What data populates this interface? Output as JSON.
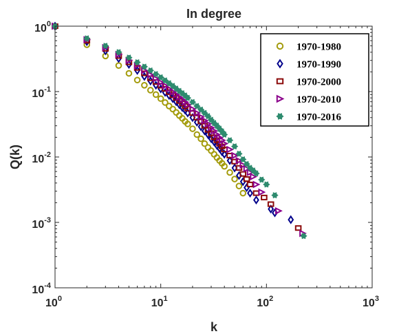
{
  "chart_data": {
    "type": "scatter",
    "title": "In degree",
    "xlabel": "k",
    "ylabel": "Q(k)",
    "xscale": "log",
    "yscale": "log",
    "xlim": [
      1,
      1000
    ],
    "ylim": [
      0.0001,
      1
    ],
    "grid": false,
    "legend_position": "top-right",
    "x_ticks": [
      {
        "base": "10",
        "exp": "0"
      },
      {
        "base": "10",
        "exp": "1"
      },
      {
        "base": "10",
        "exp": "2"
      },
      {
        "base": "10",
        "exp": "3"
      }
    ],
    "y_ticks": [
      {
        "base": "10",
        "exp": "0"
      },
      {
        "base": "10",
        "exp": "-1"
      },
      {
        "base": "10",
        "exp": "-2"
      },
      {
        "base": "10",
        "exp": "-3"
      },
      {
        "base": "10",
        "exp": "-4"
      }
    ],
    "series": [
      {
        "name": "1970-1980",
        "marker": "circle",
        "color": "#a39b0b",
        "x": [
          1,
          2,
          3,
          4,
          5,
          6,
          7,
          8,
          9,
          10,
          11,
          12,
          13,
          14,
          15,
          16,
          17,
          18,
          20,
          22,
          24,
          26,
          28,
          30,
          32,
          34,
          36,
          38,
          40,
          45,
          50,
          55,
          60
        ],
        "y": [
          1,
          0.52,
          0.35,
          0.25,
          0.19,
          0.15,
          0.125,
          0.105,
          0.09,
          0.078,
          0.068,
          0.06,
          0.054,
          0.048,
          0.043,
          0.039,
          0.035,
          0.032,
          0.027,
          0.022,
          0.019,
          0.016,
          0.014,
          0.0125,
          0.011,
          0.0098,
          0.0088,
          0.008,
          0.0072,
          0.0058,
          0.0046,
          0.0036,
          0.0028
        ]
      },
      {
        "name": "1970-1990",
        "marker": "diamond",
        "color": "#00008b",
        "x": [
          1,
          2,
          3,
          4,
          5,
          6,
          7,
          8,
          9,
          10,
          11,
          12,
          13,
          14,
          15,
          16,
          17,
          18,
          20,
          22,
          24,
          26,
          28,
          30,
          32,
          34,
          36,
          38,
          40,
          45,
          50,
          55,
          60,
          65,
          70,
          80,
          110,
          120,
          170
        ],
        "y": [
          1,
          0.58,
          0.42,
          0.32,
          0.26,
          0.21,
          0.17,
          0.145,
          0.125,
          0.11,
          0.097,
          0.087,
          0.078,
          0.07,
          0.063,
          0.057,
          0.052,
          0.047,
          0.04,
          0.034,
          0.029,
          0.025,
          0.022,
          0.019,
          0.017,
          0.015,
          0.0135,
          0.012,
          0.011,
          0.0088,
          0.0068,
          0.0052,
          0.0042,
          0.0034,
          0.0028,
          0.0022,
          0.0016,
          0.0014,
          0.0011
        ]
      },
      {
        "name": "1970-2000",
        "marker": "square",
        "color": "#8b0a0a",
        "x": [
          1,
          2,
          3,
          4,
          5,
          6,
          7,
          8,
          9,
          10,
          11,
          12,
          13,
          14,
          15,
          16,
          17,
          18,
          20,
          22,
          24,
          26,
          28,
          30,
          32,
          34,
          36,
          38,
          40,
          45,
          50,
          55,
          60,
          65,
          70,
          80,
          95,
          110,
          200
        ],
        "y": [
          1,
          0.6,
          0.45,
          0.35,
          0.28,
          0.23,
          0.19,
          0.16,
          0.14,
          0.123,
          0.11,
          0.098,
          0.088,
          0.08,
          0.072,
          0.066,
          0.06,
          0.055,
          0.047,
          0.04,
          0.035,
          0.03,
          0.026,
          0.023,
          0.02,
          0.018,
          0.016,
          0.0145,
          0.013,
          0.0105,
          0.0085,
          0.0068,
          0.0055,
          0.0046,
          0.0038,
          0.0028,
          0.0024,
          0.0019,
          0.00082
        ]
      },
      {
        "name": "1970-2010",
        "marker": "triangle-right",
        "color": "#8b008b",
        "x": [
          1,
          2,
          3,
          4,
          5,
          6,
          7,
          8,
          9,
          10,
          11,
          12,
          13,
          14,
          15,
          16,
          17,
          18,
          20,
          22,
          24,
          26,
          28,
          30,
          32,
          34,
          36,
          38,
          40,
          45,
          50,
          55,
          60,
          65,
          70,
          75,
          80,
          90,
          130,
          220
        ],
        "y": [
          1,
          0.62,
          0.47,
          0.37,
          0.3,
          0.25,
          0.21,
          0.18,
          0.157,
          0.138,
          0.123,
          0.11,
          0.099,
          0.09,
          0.082,
          0.075,
          0.069,
          0.063,
          0.054,
          0.047,
          0.041,
          0.036,
          0.032,
          0.028,
          0.025,
          0.022,
          0.0198,
          0.018,
          0.016,
          0.013,
          0.0105,
          0.0088,
          0.0075,
          0.0066,
          0.0058,
          0.005,
          0.0038,
          0.0029,
          0.0015,
          0.00068
        ]
      },
      {
        "name": "1970-2016",
        "marker": "star",
        "color": "#2e8b6e",
        "x": [
          1,
          2,
          3,
          4,
          5,
          6,
          7,
          8,
          9,
          10,
          11,
          12,
          13,
          14,
          15,
          16,
          17,
          18,
          20,
          22,
          24,
          26,
          28,
          30,
          32,
          34,
          36,
          38,
          40,
          45,
          50,
          55,
          60,
          65,
          70,
          75,
          80,
          90,
          100,
          120,
          225
        ],
        "y": [
          1,
          0.65,
          0.5,
          0.4,
          0.33,
          0.28,
          0.24,
          0.21,
          0.185,
          0.165,
          0.148,
          0.134,
          0.122,
          0.111,
          0.102,
          0.094,
          0.087,
          0.08,
          0.069,
          0.06,
          0.053,
          0.047,
          0.042,
          0.037,
          0.033,
          0.03,
          0.027,
          0.0245,
          0.022,
          0.018,
          0.0145,
          0.0112,
          0.0092,
          0.0078,
          0.0068,
          0.0062,
          0.0056,
          0.0045,
          0.0038,
          0.0026,
          0.00062
        ]
      }
    ]
  }
}
